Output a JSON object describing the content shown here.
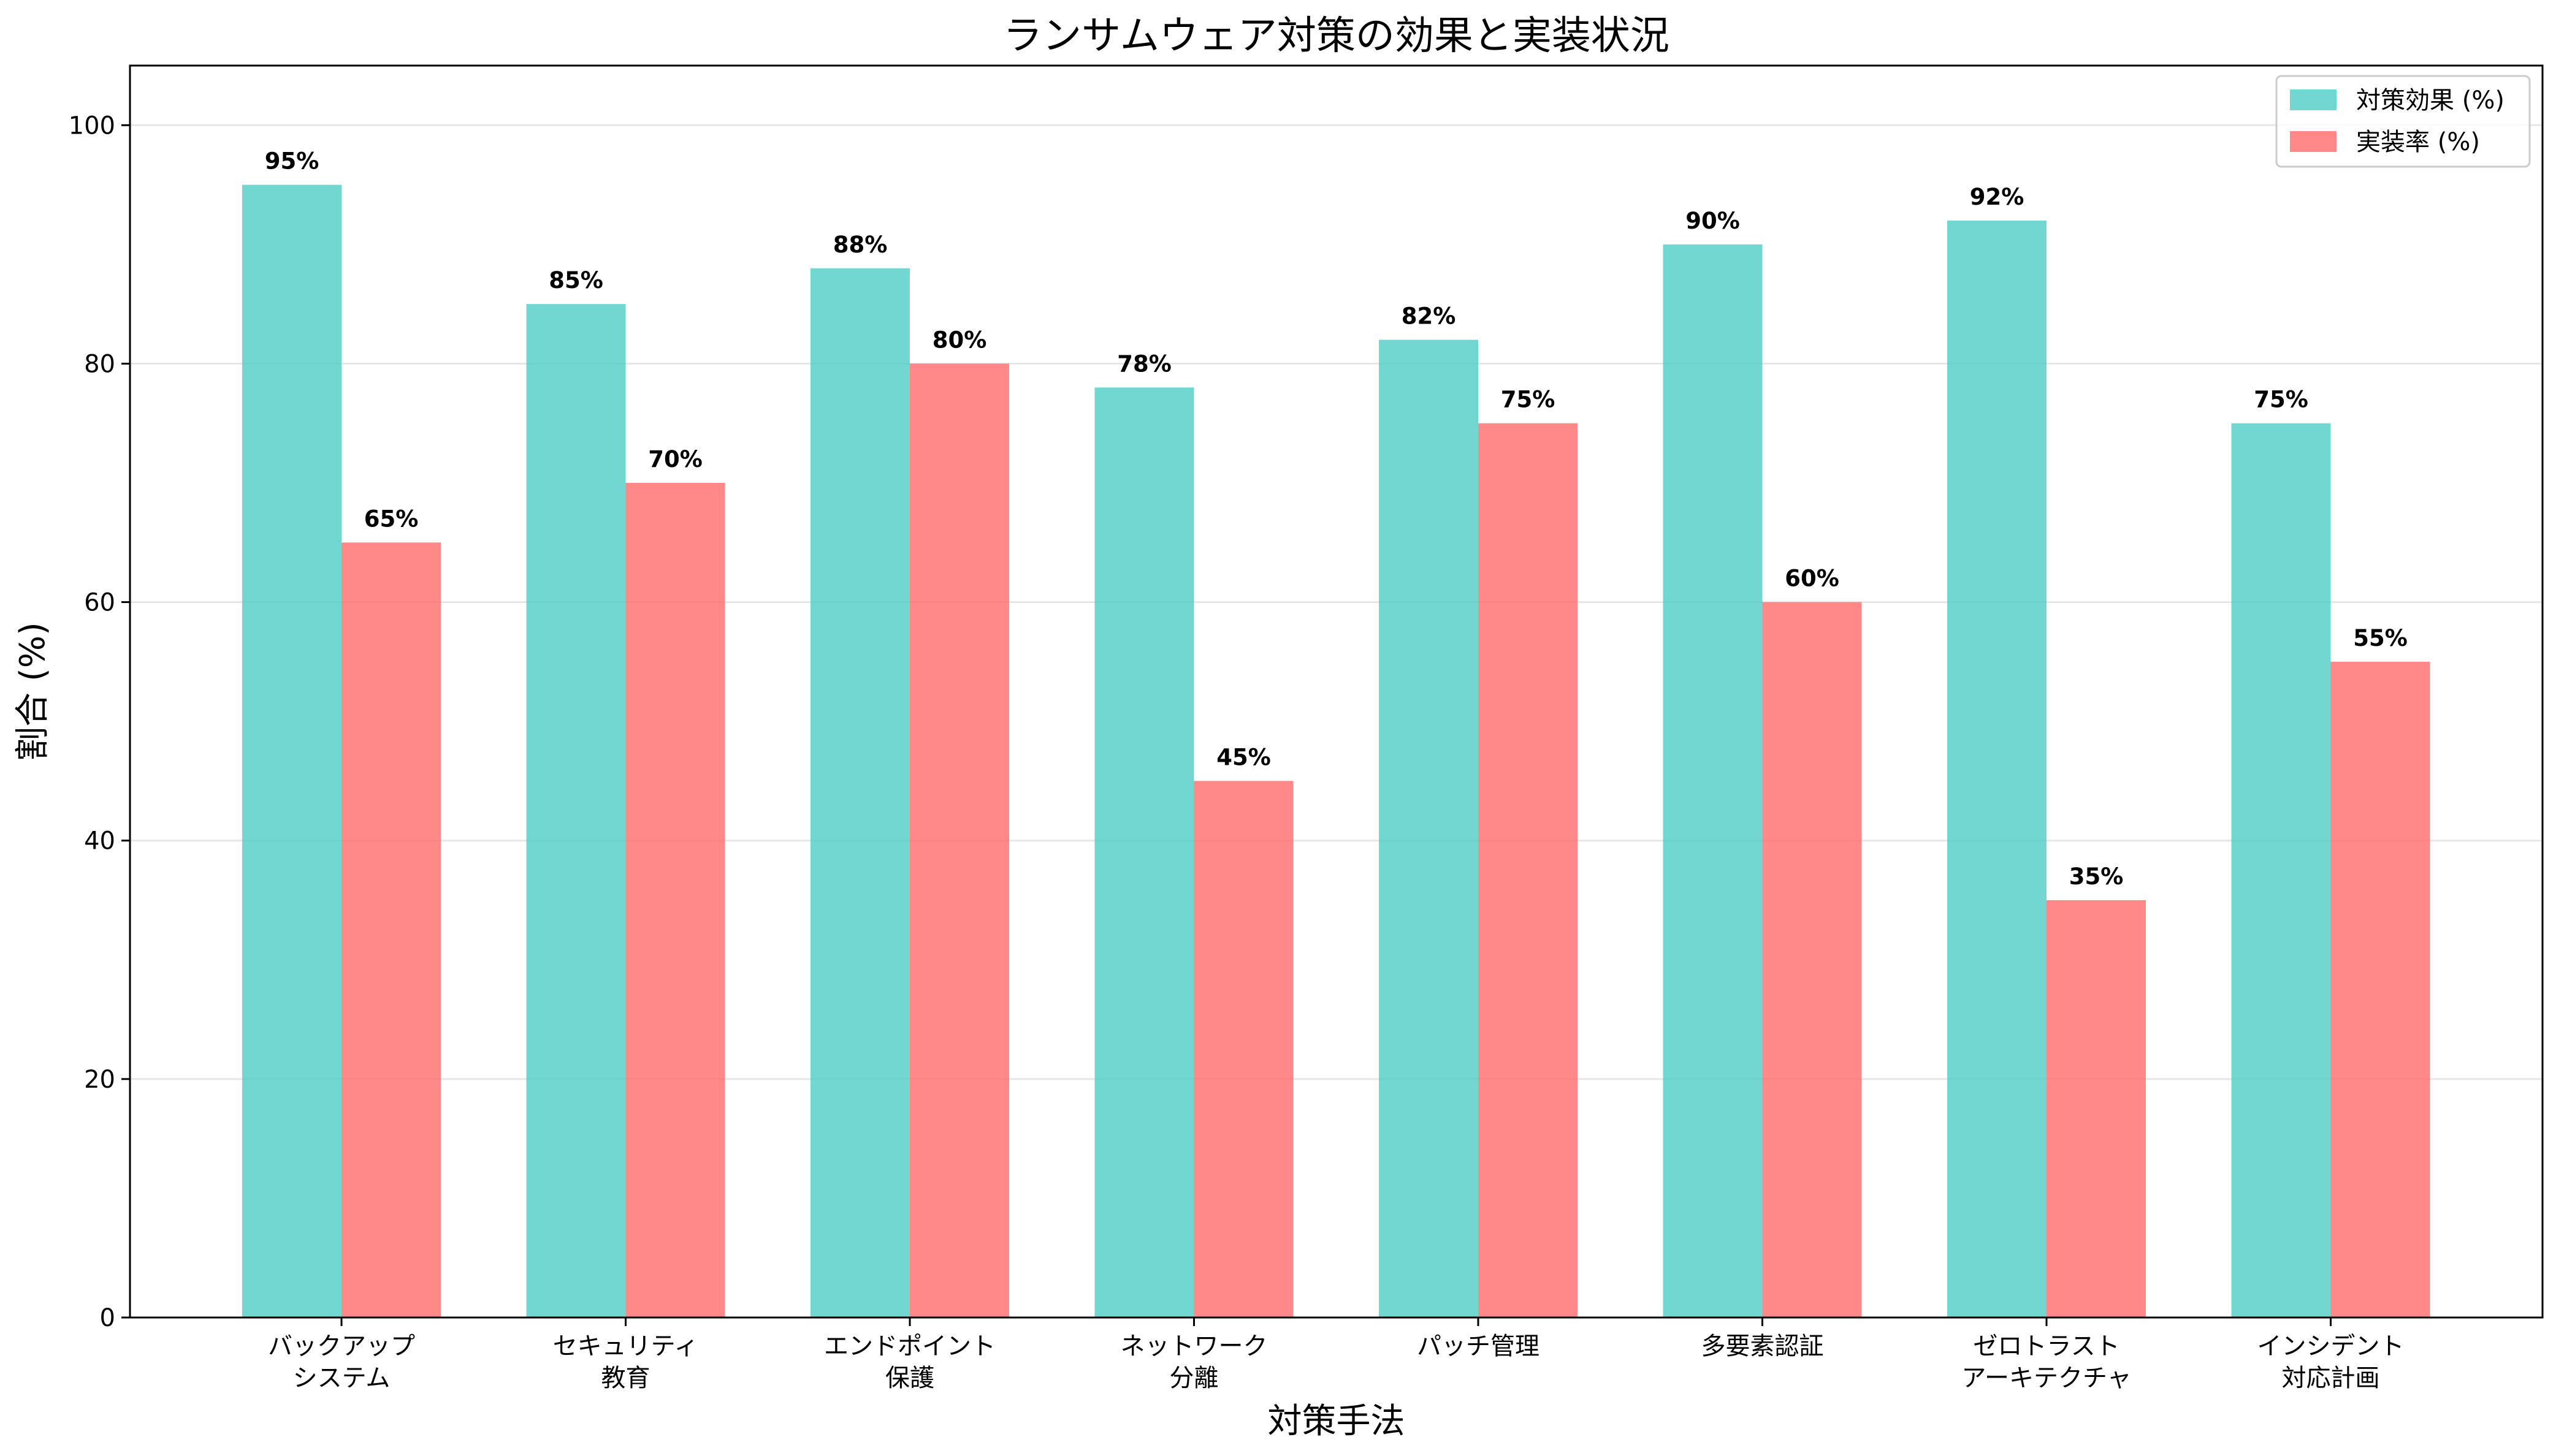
{
  "chart_data": {
    "type": "bar",
    "title": "ランサムウェア対策の効果と実装状況",
    "xlabel": "対策手法",
    "ylabel": "割合 (%)",
    "ylim": [
      0,
      105
    ],
    "yticks": [
      0,
      20,
      40,
      60,
      80,
      100
    ],
    "grid": "y",
    "legend": "top-right",
    "categories": [
      [
        "バックアップ",
        "システム"
      ],
      [
        "セキュリティ",
        "教育"
      ],
      [
        "エンドポイント",
        "保護"
      ],
      [
        "ネットワーク",
        "分離"
      ],
      [
        "パッチ管理"
      ],
      [
        "多要素認証"
      ],
      [
        "ゼロトラスト",
        "アーキテクチャ"
      ],
      [
        "インシデント",
        "対応計画"
      ]
    ],
    "series": [
      {
        "name": "対策効果 (%)",
        "color": "#4ecdc4",
        "values": [
          95,
          85,
          88,
          78,
          82,
          90,
          92,
          75
        ]
      },
      {
        "name": "実装率 (%)",
        "color": "#ff6b6b",
        "values": [
          65,
          70,
          80,
          45,
          75,
          60,
          35,
          55
        ]
      }
    ]
  }
}
